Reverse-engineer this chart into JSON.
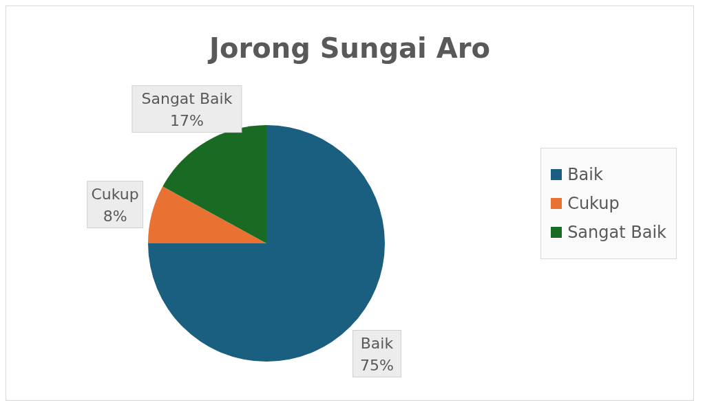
{
  "chart_data": {
    "type": "pie",
    "title": "Jorong Sungai Aro",
    "categories": [
      "Baik",
      "Cukup",
      "Sangat Baik"
    ],
    "values": [
      75,
      8,
      17
    ],
    "colors": [
      "#1a5e80",
      "#e97132",
      "#196b24"
    ],
    "value_labels": [
      "75%",
      "8%",
      "17%"
    ],
    "legend": "right"
  }
}
